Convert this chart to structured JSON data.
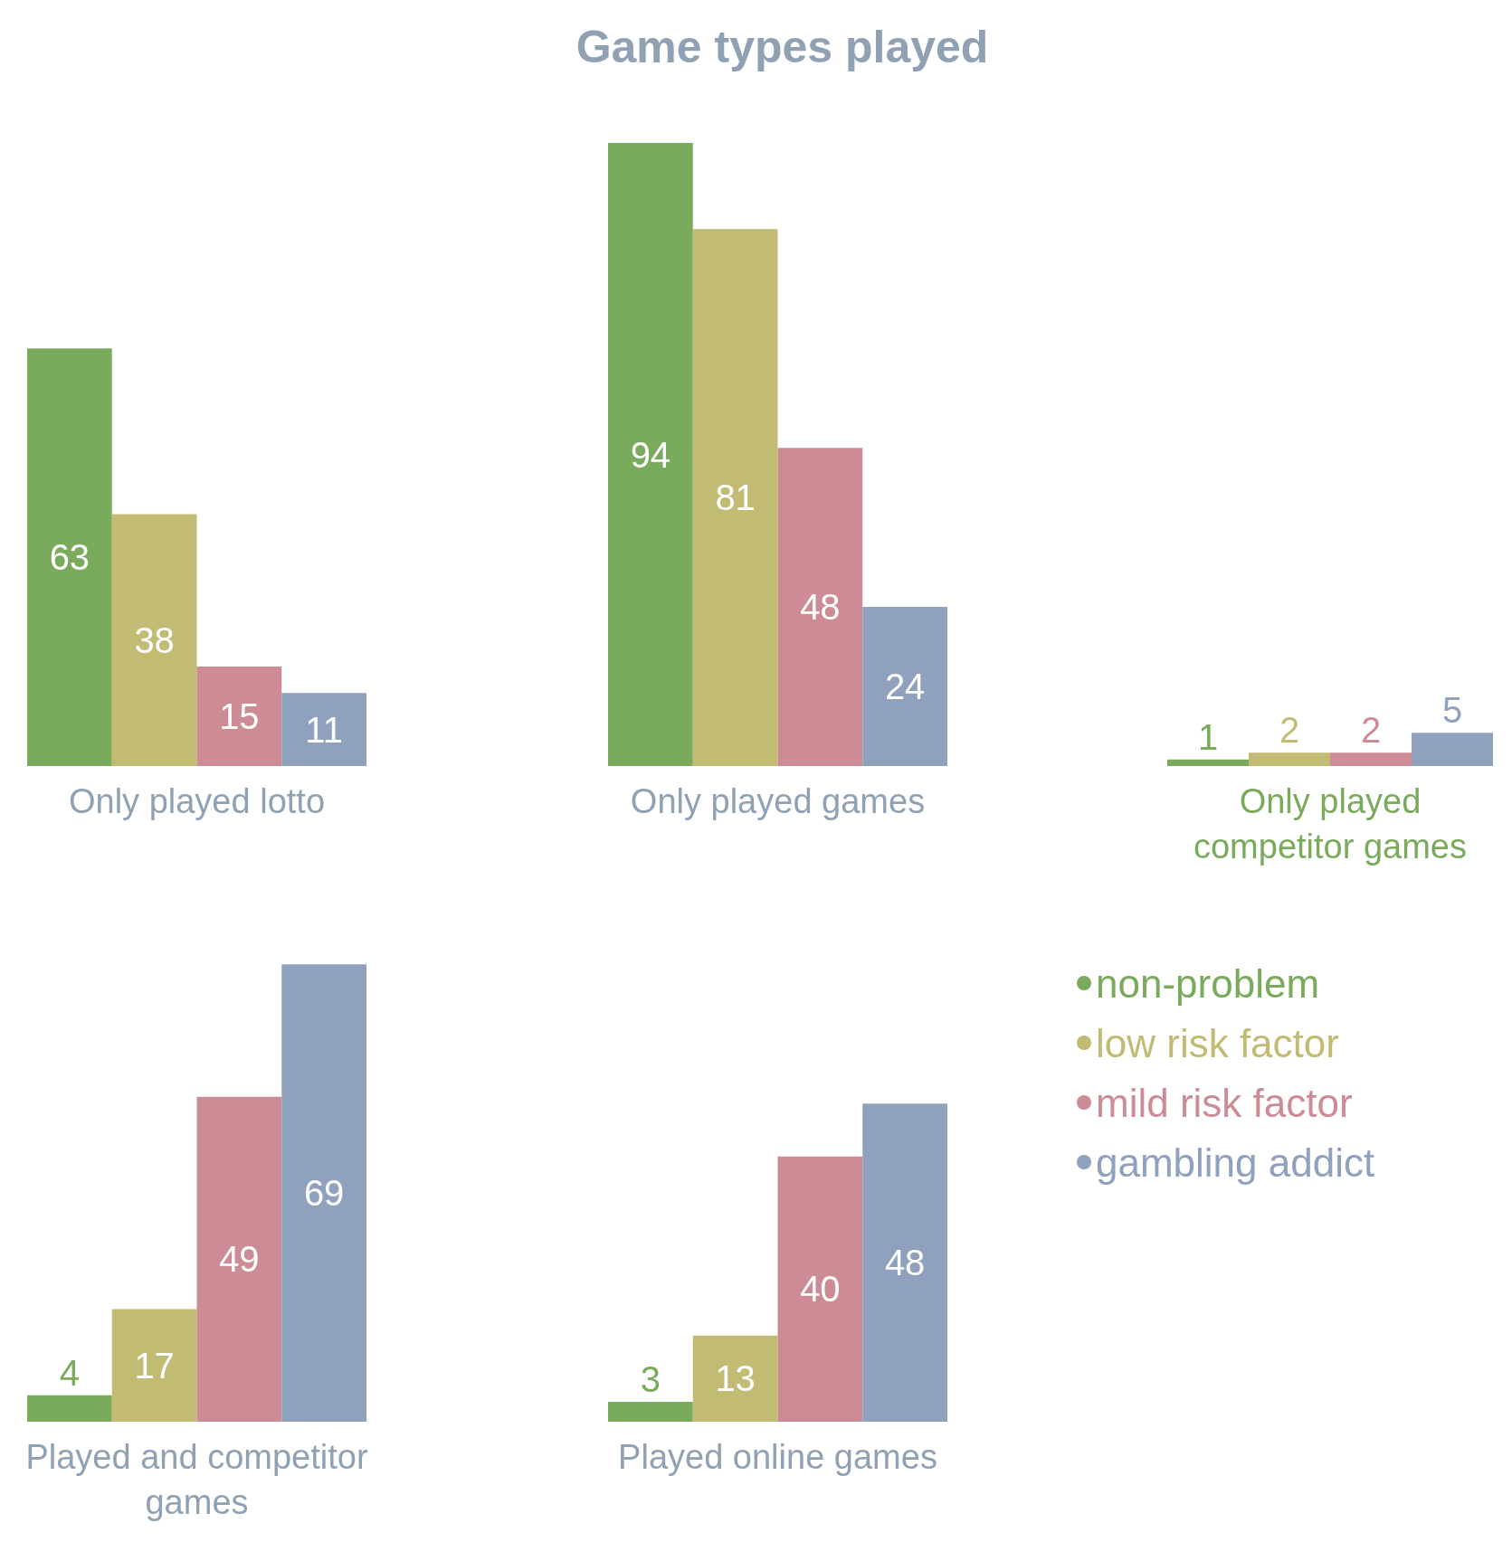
{
  "chart_data": [
    {
      "type": "bar",
      "xlabel": "Only played lotto",
      "categories": [
        null,
        null,
        null,
        null
      ],
      "stacked": true,
      "tick_labels": false,
      "data_labels": true,
      "legend": false,
      "series": [
        {
          "color": "#7aaa5c",
          "values": [
            63,
            null,
            null,
            null
          ]
        },
        {
          "color": "#c2bb74",
          "values": [
            null,
            38,
            null,
            null
          ]
        },
        {
          "color": "#cc8b95",
          "values": [
            null,
            null,
            15,
            null
          ]
        },
        {
          "color": "#8fa1bd",
          "values": [
            null,
            null,
            null,
            11
          ]
        }
      ]
    },
    {
      "type": "bar",
      "title": "Game types played",
      "xlabel": "Only played games",
      "categories": [
        null,
        null,
        null,
        null
      ],
      "stacked": true,
      "tick_labels": false,
      "data_labels": true,
      "legend": false,
      "series": [
        {
          "color": "#7aaa5c",
          "values": [
            94,
            null,
            null,
            null
          ]
        },
        {
          "color": "#c2bb74",
          "values": [
            null,
            81,
            null,
            null
          ]
        },
        {
          "color": "#cc8b95",
          "values": [
            null,
            null,
            48,
            null
          ]
        },
        {
          "color": "#8fa1bd",
          "values": [
            null,
            null,
            null,
            24
          ]
        }
      ]
    },
    {
      "type": "bar",
      "xlabel": "Only played competitor games",
      "categories": [
        null,
        null,
        null,
        null
      ],
      "stacked": true,
      "tick_labels": false,
      "data_labels": true,
      "legend": false,
      "series": [
        {
          "color": "#7aaa5c",
          "values": [
            1,
            null,
            null,
            null
          ]
        },
        {
          "color": "#c2bb74",
          "values": [
            null,
            2,
            null,
            null
          ]
        },
        {
          "color": "#cc8b95",
          "values": [
            null,
            null,
            2,
            null
          ]
        },
        {
          "color": "#8fa1bd",
          "values": [
            null,
            null,
            null,
            5
          ]
        }
      ]
    },
    {
      "type": "bar",
      "xlabel": "Played and competitor games",
      "categories": [
        null,
        null,
        null,
        null
      ],
      "stacked": true,
      "tick_labels": false,
      "data_labels": true,
      "legend": false,
      "series": [
        {
          "color": "#7aaa5c",
          "values": [
            4,
            null,
            null,
            null
          ]
        },
        {
          "color": "#c2bb74",
          "values": [
            null,
            17,
            null,
            null
          ]
        },
        {
          "color": "#cc8b95",
          "values": [
            null,
            null,
            49,
            null
          ]
        },
        {
          "color": "#8fa1bd",
          "values": [
            null,
            null,
            null,
            69
          ]
        }
      ]
    },
    {
      "type": "bar",
      "xlabel": "Played online games",
      "categories": [
        null,
        null,
        null,
        null
      ],
      "stacked": true,
      "tick_labels": false,
      "data_labels": true,
      "legend": "right",
      "series": [
        {
          "name": "non-problem",
          "color": "#7aaa5c",
          "values": [
            3,
            null,
            null,
            null
          ]
        },
        {
          "name": "low risk factor",
          "color": "#c2bb74",
          "values": [
            null,
            13,
            null,
            null
          ]
        },
        {
          "name": "mild risk factor",
          "color": "#cc8b95",
          "values": [
            null,
            null,
            40,
            null
          ]
        },
        {
          "name": "gambling addict",
          "color": "#8fa1bd",
          "values": [
            null,
            null,
            null,
            48
          ]
        }
      ]
    }
  ]
}
